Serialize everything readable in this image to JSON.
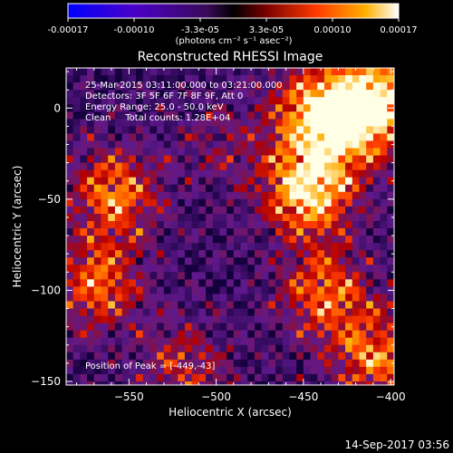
{
  "colorbar": {
    "ticks": [
      "-0.00017",
      "-0.00010",
      "-3.3e-05",
      "3.3e-05",
      "0.00010",
      "0.00017"
    ],
    "range": [
      -0.00017,
      0.00017
    ],
    "unit_label": "(photons cm⁻² s⁻¹ asec⁻²)"
  },
  "footer": {
    "timestamp": "14-Sep-2017 03:56"
  },
  "chart_data": {
    "type": "heatmap",
    "title": "Reconstructed RHESSI Image",
    "xlabel": "Heliocentric X (arcsec)",
    "ylabel": "Heliocentric Y (arcsec)",
    "xlim": [
      -586,
      -398
    ],
    "ylim": [
      -152,
      22
    ],
    "x_ticks": [
      -550,
      -500,
      -450,
      -400
    ],
    "y_ticks": [
      0,
      -50,
      -100,
      -150
    ],
    "x_tick_labels": [
      "−550",
      "−500",
      "−450",
      "−400"
    ],
    "y_tick_labels": [
      "0",
      "−50",
      "−100",
      "−150"
    ],
    "colormap": "red-temperature",
    "grid": false,
    "annotations": [
      "25-Mar-2015 03:11:00.000 to 03:21:00.000",
      "Detectors: 3F 5F 6F 7F 8F 9F, Att 0",
      "Energy Range: 25.0 - 50.0 keV",
      "Clean     Total counts: 1.28E+04"
    ],
    "peak_label": "Position of Peak = [-449,-43]",
    "peak_position": [
      -449,
      -43
    ],
    "bright_regions": [
      {
        "x": -449,
        "y": -43,
        "intensity": 1.0
      },
      {
        "x": -425,
        "y": -5,
        "intensity": 0.8
      },
      {
        "x": -410,
        "y": 10,
        "intensity": 0.75
      },
      {
        "x": -560,
        "y": -45,
        "intensity": 0.7
      },
      {
        "x": -570,
        "y": -95,
        "intensity": 0.65
      },
      {
        "x": -440,
        "y": -100,
        "intensity": 0.65
      },
      {
        "x": -410,
        "y": -135,
        "intensity": 0.7
      },
      {
        "x": -520,
        "y": -140,
        "intensity": 0.45
      },
      {
        "x": -450,
        "y": 0,
        "intensity": 0.6
      },
      {
        "x": -500,
        "y": -20,
        "intensity": 0.25
      }
    ]
  }
}
